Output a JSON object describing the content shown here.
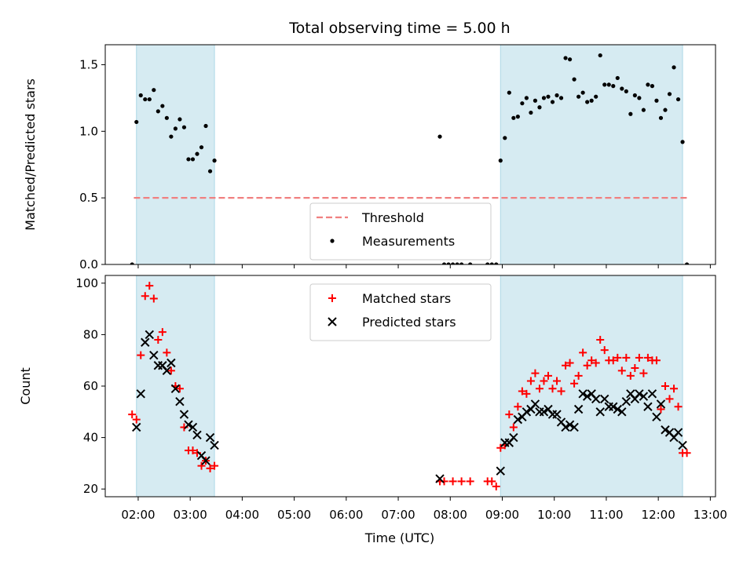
{
  "chart_data": {
    "type": "scatter",
    "title": "Total observing time = 5.00 h",
    "xlabel": "Time (UTC)",
    "x_range": [
      "01:22",
      "13:06"
    ],
    "x_ticks": [
      "02:00",
      "03:00",
      "04:00",
      "05:00",
      "06:00",
      "07:00",
      "08:00",
      "09:00",
      "10:00",
      "11:00",
      "12:00",
      "13:00"
    ],
    "shade_color": "#add8e6",
    "shaded_intervals": [
      [
        "01:58",
        "03:28"
      ],
      [
        "08:58",
        "12:28"
      ]
    ],
    "panels": [
      {
        "ylabel": "Matched/Predicted stars",
        "ylim": [
          0,
          1.65
        ],
        "y_ticks": [
          "0.0",
          "0.5",
          "1.0",
          "1.5"
        ],
        "legend_position": "bottom-center",
        "series": [
          {
            "name": "Threshold",
            "kind": "dashed-line",
            "color": "#f08080",
            "value": 0.5,
            "x_span": [
              "01:55",
              "12:33"
            ]
          },
          {
            "name": "Measurements",
            "kind": "dot",
            "color": "#000000",
            "points": [
              [
                "01:53",
                0.0
              ],
              [
                "01:58",
                1.07
              ],
              [
                "02:03",
                1.27
              ],
              [
                "02:08",
                1.24
              ],
              [
                "02:13",
                1.24
              ],
              [
                "02:18",
                1.31
              ],
              [
                "02:23",
                1.15
              ],
              [
                "02:28",
                1.19
              ],
              [
                "02:33",
                1.1
              ],
              [
                "02:38",
                0.96
              ],
              [
                "02:43",
                1.02
              ],
              [
                "02:48",
                1.09
              ],
              [
                "02:53",
                1.03
              ],
              [
                "02:58",
                0.79
              ],
              [
                "03:03",
                0.79
              ],
              [
                "03:08",
                0.83
              ],
              [
                "03:13",
                0.88
              ],
              [
                "03:18",
                1.04
              ],
              [
                "03:23",
                0.7
              ],
              [
                "03:28",
                0.78
              ],
              [
                "07:48",
                0.96
              ],
              [
                "07:53",
                0.0
              ],
              [
                "07:58",
                0.0
              ],
              [
                "08:03",
                0.0
              ],
              [
                "08:08",
                0.0
              ],
              [
                "08:13",
                0.0
              ],
              [
                "08:23",
                0.0
              ],
              [
                "08:43",
                0.0
              ],
              [
                "08:48",
                0.0
              ],
              [
                "08:53",
                0.0
              ],
              [
                "08:58",
                0.78
              ],
              [
                "09:03",
                0.95
              ],
              [
                "09:08",
                1.29
              ],
              [
                "09:13",
                1.1
              ],
              [
                "09:18",
                1.11
              ],
              [
                "09:23",
                1.21
              ],
              [
                "09:28",
                1.25
              ],
              [
                "09:33",
                1.14
              ],
              [
                "09:38",
                1.23
              ],
              [
                "09:43",
                1.18
              ],
              [
                "09:48",
                1.25
              ],
              [
                "09:53",
                1.26
              ],
              [
                "09:58",
                1.22
              ],
              [
                "10:03",
                1.27
              ],
              [
                "10:08",
                1.25
              ],
              [
                "10:13",
                1.55
              ],
              [
                "10:18",
                1.54
              ],
              [
                "10:23",
                1.39
              ],
              [
                "10:28",
                1.26
              ],
              [
                "10:33",
                1.29
              ],
              [
                "10:38",
                1.22
              ],
              [
                "10:43",
                1.23
              ],
              [
                "10:48",
                1.26
              ],
              [
                "10:53",
                1.57
              ],
              [
                "10:58",
                1.35
              ],
              [
                "11:03",
                1.35
              ],
              [
                "11:08",
                1.34
              ],
              [
                "11:13",
                1.4
              ],
              [
                "11:18",
                1.32
              ],
              [
                "11:23",
                1.3
              ],
              [
                "11:28",
                1.13
              ],
              [
                "11:33",
                1.27
              ],
              [
                "11:38",
                1.25
              ],
              [
                "11:43",
                1.16
              ],
              [
                "11:48",
                1.35
              ],
              [
                "11:53",
                1.34
              ],
              [
                "11:58",
                1.23
              ],
              [
                "12:03",
                1.1
              ],
              [
                "12:08",
                1.16
              ],
              [
                "12:13",
                1.28
              ],
              [
                "12:18",
                1.48
              ],
              [
                "12:23",
                1.24
              ],
              [
                "12:28",
                0.92
              ],
              [
                "12:33",
                0.0
              ]
            ]
          }
        ]
      },
      {
        "ylabel": "Count",
        "ylim": [
          17,
          103
        ],
        "y_ticks": [
          "20",
          "40",
          "60",
          "80",
          "100"
        ],
        "legend_position": "top-center",
        "series": [
          {
            "name": "Matched stars",
            "kind": "plus",
            "color": "#ff0000",
            "points": [
              [
                "01:53",
                49
              ],
              [
                "01:58",
                47
              ],
              [
                "02:03",
                72
              ],
              [
                "02:08",
                95
              ],
              [
                "02:13",
                99
              ],
              [
                "02:18",
                94
              ],
              [
                "02:23",
                78
              ],
              [
                "02:28",
                81
              ],
              [
                "02:33",
                73
              ],
              [
                "02:38",
                66
              ],
              [
                "02:43",
                60
              ],
              [
                "02:48",
                59
              ],
              [
                "02:53",
                44
              ],
              [
                "02:58",
                35
              ],
              [
                "03:03",
                35
              ],
              [
                "03:08",
                34
              ],
              [
                "03:13",
                29
              ],
              [
                "03:18",
                31
              ],
              [
                "03:23",
                28
              ],
              [
                "03:28",
                29
              ],
              [
                "07:48",
                23
              ],
              [
                "07:53",
                23
              ],
              [
                "08:03",
                23
              ],
              [
                "08:13",
                23
              ],
              [
                "08:23",
                23
              ],
              [
                "08:43",
                23
              ],
              [
                "08:48",
                23
              ],
              [
                "08:53",
                21
              ],
              [
                "08:58",
                36
              ],
              [
                "09:03",
                37
              ],
              [
                "09:08",
                49
              ],
              [
                "09:13",
                44
              ],
              [
                "09:18",
                52
              ],
              [
                "09:23",
                58
              ],
              [
                "09:28",
                57
              ],
              [
                "09:33",
                62
              ],
              [
                "09:38",
                65
              ],
              [
                "09:43",
                59
              ],
              [
                "09:48",
                62
              ],
              [
                "09:53",
                64
              ],
              [
                "09:58",
                59
              ],
              [
                "10:03",
                62
              ],
              [
                "10:08",
                58
              ],
              [
                "10:13",
                68
              ],
              [
                "10:18",
                69
              ],
              [
                "10:23",
                61
              ],
              [
                "10:28",
                64
              ],
              [
                "10:33",
                73
              ],
              [
                "10:38",
                68
              ],
              [
                "10:43",
                70
              ],
              [
                "10:48",
                69
              ],
              [
                "10:53",
                78
              ],
              [
                "10:58",
                74
              ],
              [
                "11:03",
                70
              ],
              [
                "11:08",
                70
              ],
              [
                "11:13",
                71
              ],
              [
                "11:18",
                66
              ],
              [
                "11:23",
                71
              ],
              [
                "11:28",
                64
              ],
              [
                "11:33",
                67
              ],
              [
                "11:38",
                71
              ],
              [
                "11:43",
                65
              ],
              [
                "11:48",
                71
              ],
              [
                "11:53",
                70
              ],
              [
                "11:58",
                70
              ],
              [
                "12:03",
                51
              ],
              [
                "12:08",
                60
              ],
              [
                "12:13",
                55
              ],
              [
                "12:18",
                59
              ],
              [
                "12:23",
                52
              ],
              [
                "12:28",
                34
              ],
              [
                "12:33",
                34
              ]
            ]
          },
          {
            "name": "Predicted stars",
            "kind": "cross",
            "color": "#000000",
            "points": [
              [
                "01:58",
                44
              ],
              [
                "02:03",
                57
              ],
              [
                "02:08",
                77
              ],
              [
                "02:13",
                80
              ],
              [
                "02:18",
                72
              ],
              [
                "02:23",
                68
              ],
              [
                "02:28",
                68
              ],
              [
                "02:33",
                66
              ],
              [
                "02:38",
                69
              ],
              [
                "02:43",
                59
              ],
              [
                "02:48",
                54
              ],
              [
                "02:53",
                49
              ],
              [
                "02:58",
                45
              ],
              [
                "03:03",
                44
              ],
              [
                "03:08",
                41
              ],
              [
                "03:13",
                33
              ],
              [
                "03:18",
                31
              ],
              [
                "03:23",
                40
              ],
              [
                "03:28",
                37
              ],
              [
                "07:48",
                24
              ],
              [
                "08:58",
                27
              ],
              [
                "09:03",
                38
              ],
              [
                "09:08",
                38
              ],
              [
                "09:13",
                40
              ],
              [
                "09:18",
                47
              ],
              [
                "09:23",
                48
              ],
              [
                "09:28",
                50
              ],
              [
                "09:33",
                51
              ],
              [
                "09:38",
                53
              ],
              [
                "09:43",
                50
              ],
              [
                "09:48",
                50
              ],
              [
                "09:53",
                51
              ],
              [
                "09:58",
                49
              ],
              [
                "10:03",
                49
              ],
              [
                "10:08",
                46
              ],
              [
                "10:13",
                44
              ],
              [
                "10:18",
                45
              ],
              [
                "10:23",
                44
              ],
              [
                "10:28",
                51
              ],
              [
                "10:33",
                57
              ],
              [
                "10:38",
                56
              ],
              [
                "10:43",
                57
              ],
              [
                "10:48",
                55
              ],
              [
                "10:53",
                50
              ],
              [
                "10:58",
                55
              ],
              [
                "11:03",
                52
              ],
              [
                "11:08",
                52
              ],
              [
                "11:13",
                51
              ],
              [
                "11:18",
                50
              ],
              [
                "11:23",
                54
              ],
              [
                "11:28",
                57
              ],
              [
                "11:33",
                55
              ],
              [
                "11:38",
                57
              ],
              [
                "11:43",
                56
              ],
              [
                "11:48",
                52
              ],
              [
                "11:53",
                57
              ],
              [
                "11:58",
                48
              ],
              [
                "12:03",
                53
              ],
              [
                "12:08",
                43
              ],
              [
                "12:13",
                42
              ],
              [
                "12:18",
                40
              ],
              [
                "12:23",
                42
              ],
              [
                "12:28",
                37
              ]
            ]
          }
        ]
      }
    ]
  }
}
